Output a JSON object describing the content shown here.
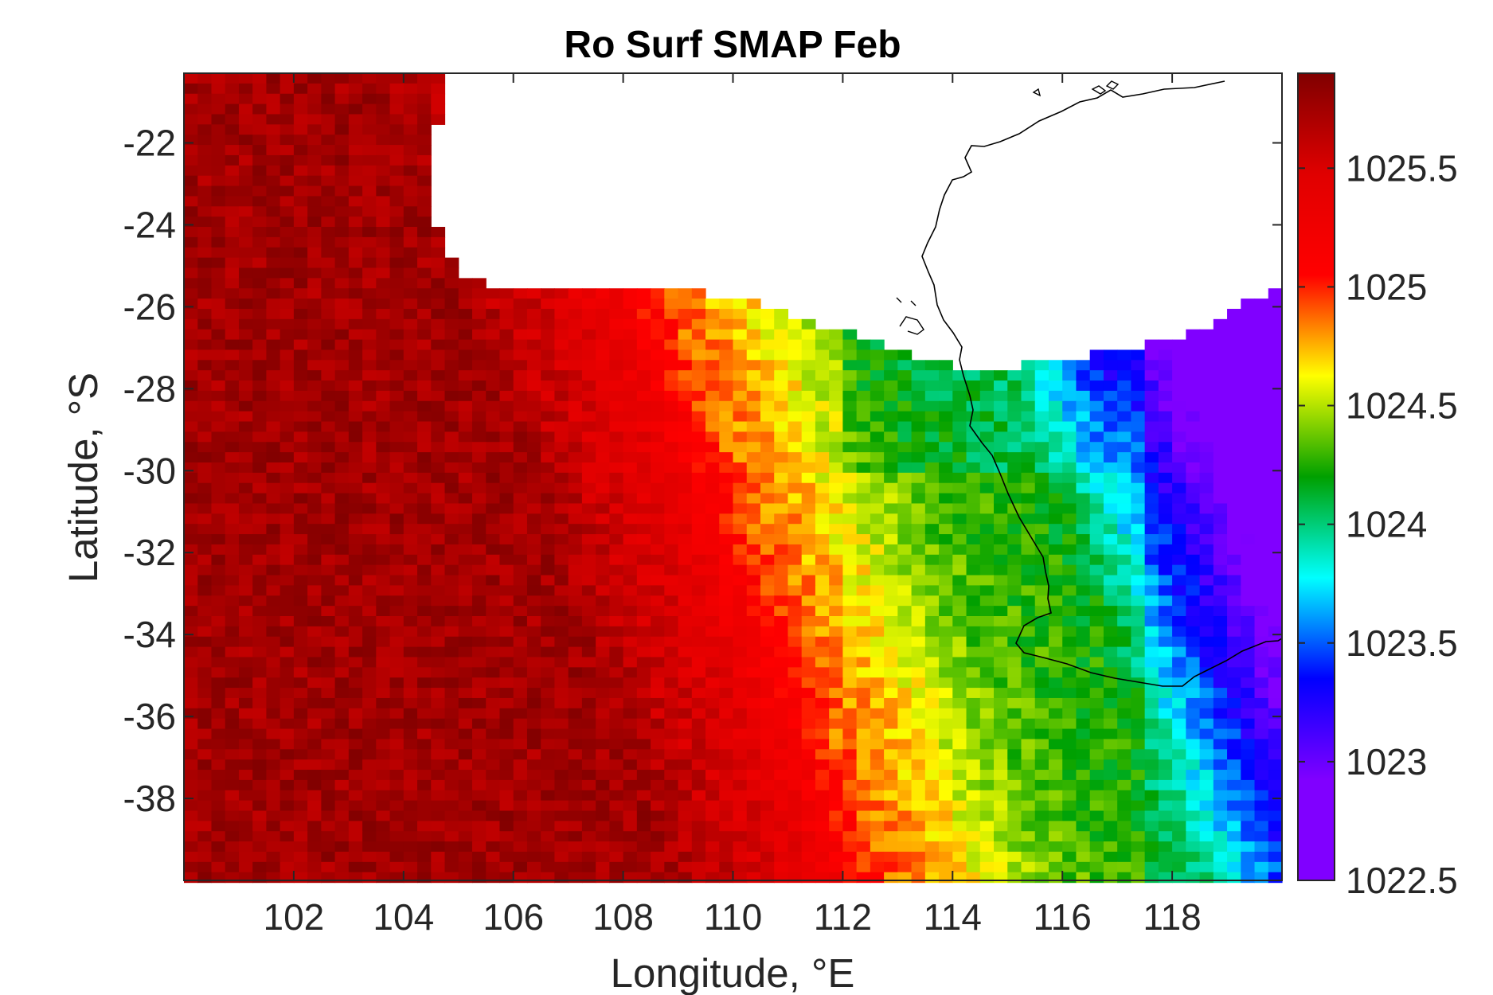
{
  "chart_data": {
    "type": "heatmap",
    "title": "Ro Surf SMAP Feb",
    "xlabel": "Longitude, °E",
    "ylabel": "Latitude, °S",
    "xlim": [
      100,
      120
    ],
    "ylim": [
      -40,
      -20.3
    ],
    "x_ticks": [
      102,
      104,
      106,
      108,
      110,
      112,
      114,
      116,
      118
    ],
    "x_tick_labels": [
      "102",
      "104",
      "106",
      "108",
      "110",
      "112",
      "114",
      "116",
      "118"
    ],
    "y_ticks": [
      -22,
      -24,
      -26,
      -28,
      -30,
      -32,
      -34,
      -36,
      -38
    ],
    "y_tick_labels": [
      "-22",
      "-24",
      "-26",
      "-28",
      "-30",
      "-32",
      "-34",
      "-36",
      "-38"
    ],
    "colorbar": {
      "colormap": "jet",
      "clim": [
        1022.5,
        1025.9
      ],
      "ticks": [
        1022.5,
        1023,
        1023.5,
        1024,
        1024.5,
        1025,
        1025.5
      ],
      "tick_labels": [
        "1022.5",
        "1023",
        "1023.5",
        "1024",
        "1024.5",
        "1025",
        "1025.5"
      ]
    },
    "grid_resolution_deg": 0.25,
    "fields_approx": [
      {
        "region": "west of ~106°E",
        "value": 1025.7
      },
      {
        "region": "~107–109°E front",
        "value": 1025.0
      },
      {
        "region": "~112–114°E band",
        "value": 1024.4
      },
      {
        "region": "~115–117°E",
        "value": 1023.9
      },
      {
        "region": "east of ~118°E",
        "value": 1023.0
      }
    ],
    "land_mask": "Western Australia coastline (white, no data)",
    "grid": false
  }
}
